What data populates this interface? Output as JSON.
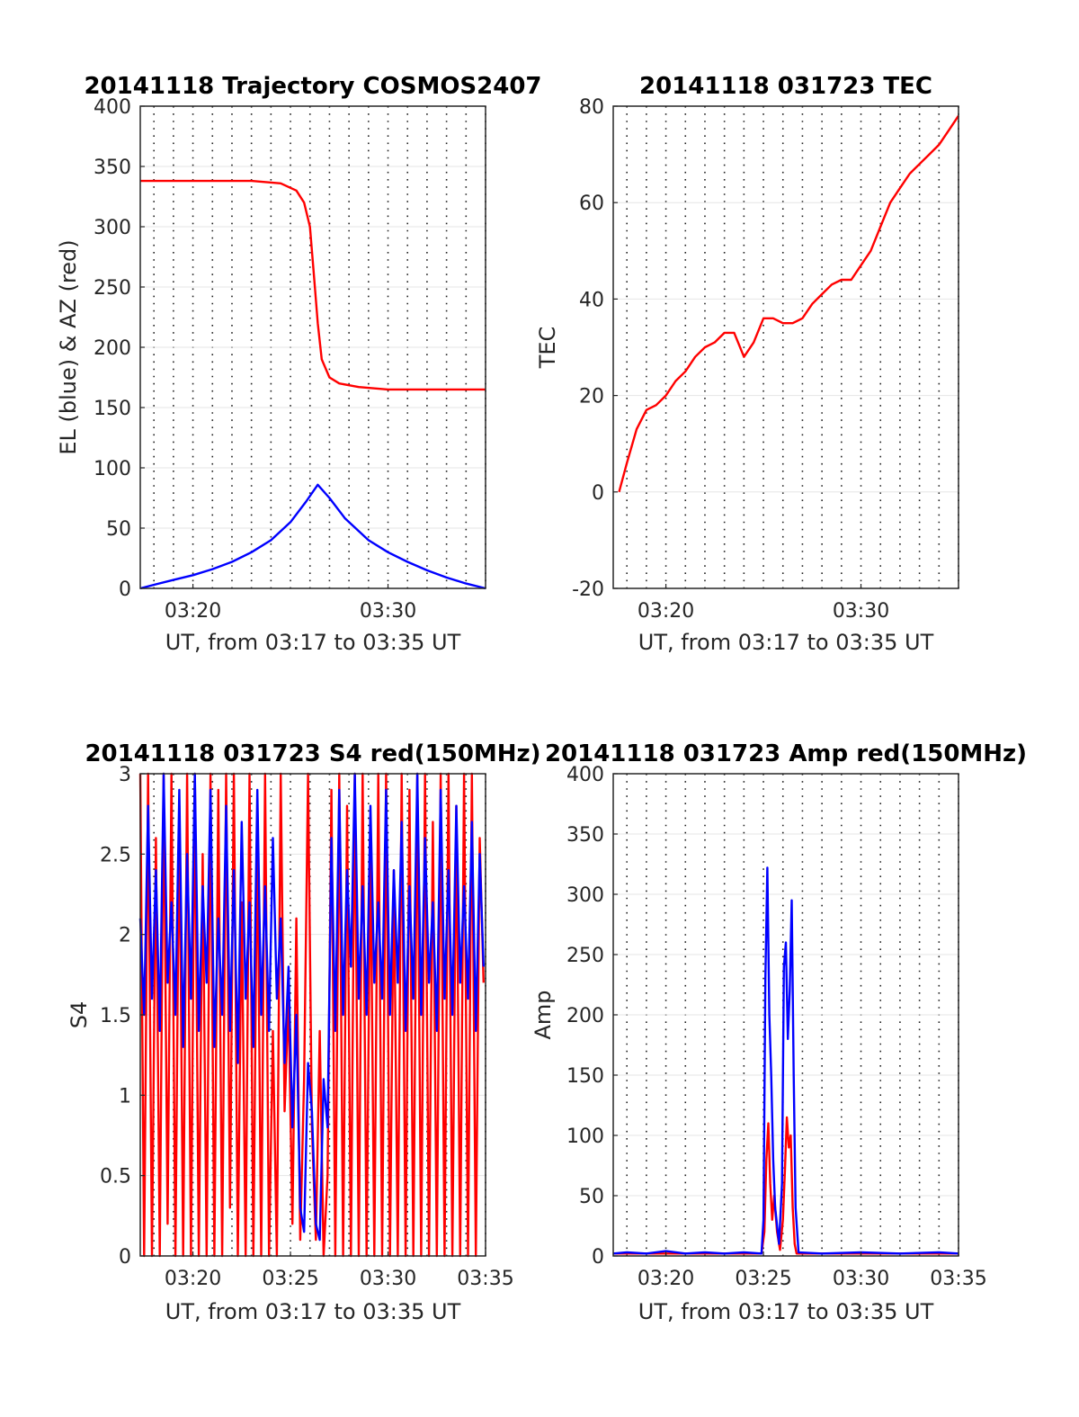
{
  "colors": {
    "el": "#0000ff",
    "az": "#ff0000",
    "s4_red": "#ff0000",
    "s4_blue": "#0000ff",
    "tec": "#ff0000",
    "amp_red": "#ff0000",
    "amp_blue": "#0000ff"
  },
  "chart_data": [
    {
      "type": "line",
      "title": "20141118 Trajectory COSMOS2407",
      "xlabel": "UT, from 03:17 to 03:35 UT",
      "ylabel": "EL (blue) & AZ (red)",
      "xlim_minutes": [
        17.3,
        35
      ],
      "ylim": [
        0,
        400
      ],
      "yticks": [
        "0",
        "50",
        "100",
        "150",
        "200",
        "250",
        "300",
        "350",
        "400"
      ],
      "xticks": [
        {
          "x": "03:20",
          "label": "03:20"
        },
        {
          "x": "03:30",
          "label": "03:30"
        }
      ],
      "grid": "dotted-vertical",
      "series": [
        {
          "key": "az",
          "color": "#ff0000",
          "x": [
            "03:17.3",
            "03:20",
            "03:23",
            "03:24.5",
            "03:25.3",
            "03:25.7",
            "03:26.0",
            "03:26.2",
            "03:26.4",
            "03:26.6",
            "03:27.0",
            "03:27.5",
            "03:28.5",
            "03:30",
            "03:32",
            "03:35"
          ],
          "y": [
            338,
            338,
            338,
            336,
            330,
            320,
            300,
            260,
            220,
            190,
            175,
            170,
            167,
            165,
            165,
            165
          ]
        },
        {
          "key": "el",
          "color": "#0000ff",
          "x": [
            "03:17.3",
            "03:18",
            "03:19",
            "03:20",
            "03:21",
            "03:22",
            "03:23",
            "03:24",
            "03:25",
            "03:25.8",
            "03:26.4",
            "03:27",
            "03:27.8",
            "03:29",
            "03:30",
            "03:31",
            "03:32",
            "03:33",
            "03:34",
            "03:35"
          ],
          "y": [
            0,
            3,
            7,
            11,
            16,
            22,
            30,
            40,
            55,
            72,
            86,
            75,
            58,
            40,
            30,
            22,
            15,
            9,
            4,
            0
          ]
        }
      ]
    },
    {
      "type": "line",
      "title": "20141118 031723 TEC",
      "xlabel": "UT, from 03:17 to 03:35 UT",
      "ylabel": "TEC",
      "xlim_minutes": [
        17.3,
        35
      ],
      "ylim": [
        -20,
        80
      ],
      "yticks": [
        "-20",
        "0",
        "20",
        "40",
        "60",
        "80"
      ],
      "xticks": [
        {
          "x": "03:20",
          "label": "03:20"
        },
        {
          "x": "03:30",
          "label": "03:30"
        }
      ],
      "grid": "dotted-vertical",
      "series": [
        {
          "key": "tec",
          "color": "#ff0000",
          "x": [
            "03:17.6",
            "03:18",
            "03:18.5",
            "03:19",
            "03:19.5",
            "03:20",
            "03:20.5",
            "03:21",
            "03:21.5",
            "03:22",
            "03:22.5",
            "03:23",
            "03:23.5",
            "03:24",
            "03:24.5",
            "03:25",
            "03:25.5",
            "03:26",
            "03:26.5",
            "03:27",
            "03:27.5",
            "03:28",
            "03:28.5",
            "03:29",
            "03:29.5",
            "03:30",
            "03:30.5",
            "03:31",
            "03:31.5",
            "03:32",
            "03:32.5",
            "03:33",
            "03:33.5",
            "03:34",
            "03:34.5",
            "03:35"
          ],
          "y": [
            0,
            6,
            13,
            17,
            18,
            20,
            23,
            25,
            28,
            30,
            31,
            33,
            33,
            28,
            31,
            36,
            36,
            35,
            35,
            36,
            39,
            41,
            43,
            44,
            44,
            47,
            50,
            55,
            60,
            63,
            66,
            68,
            70,
            72,
            75,
            78
          ]
        }
      ]
    },
    {
      "type": "line",
      "title": "20141118 031723 S4 red(150MHz)",
      "xlabel": "UT, from 03:17 to 03:35 UT",
      "ylabel": "S4",
      "xlim_minutes": [
        17.3,
        35
      ],
      "ylim": [
        0,
        3
      ],
      "yticks": [
        "0",
        "0.5",
        "1",
        "1.5",
        "2",
        "2.5",
        "3"
      ],
      "xticks": [
        {
          "x": "03:20",
          "label": "03:20"
        },
        {
          "x": "03:25",
          "label": "03:25"
        },
        {
          "x": "03:30",
          "label": "03:30"
        },
        {
          "x": "03:35",
          "label": "03:35"
        }
      ],
      "grid": "dotted-vertical",
      "series": [
        {
          "key": "s4_red",
          "color": "#ff0000",
          "x": [
            "03:17.3",
            "03:17.5",
            "03:17.7",
            "03:17.9",
            "03:18.1",
            "03:18.3",
            "03:18.5",
            "03:18.7",
            "03:18.9",
            "03:19.1",
            "03:19.3",
            "03:19.5",
            "03:19.7",
            "03:19.9",
            "03:20.1",
            "03:20.3",
            "03:20.5",
            "03:20.7",
            "03:20.9",
            "03:21.1",
            "03:21.3",
            "03:21.5",
            "03:21.7",
            "03:21.9",
            "03:22.1",
            "03:22.3",
            "03:22.5",
            "03:22.7",
            "03:22.9",
            "03:23.1",
            "03:23.3",
            "03:23.5",
            "03:23.7",
            "03:23.9",
            "03:24.1",
            "03:24.3",
            "03:24.5",
            "03:24.7",
            "03:24.9",
            "03:25.1",
            "03:25.3",
            "03:25.5",
            "03:25.7",
            "03:25.9",
            "03:26.1",
            "03:26.3",
            "03:26.5",
            "03:26.7",
            "03:26.9",
            "03:27.1",
            "03:27.3",
            "03:27.5",
            "03:27.7",
            "03:27.9",
            "03:28.1",
            "03:28.3",
            "03:28.5",
            "03:28.7",
            "03:28.9",
            "03:29.1",
            "03:29.3",
            "03:29.5",
            "03:29.7",
            "03:29.9",
            "03:30.1",
            "03:30.3",
            "03:30.5",
            "03:30.7",
            "03:30.9",
            "03:31.1",
            "03:31.3",
            "03:31.5",
            "03:31.7",
            "03:31.9",
            "03:32.1",
            "03:32.3",
            "03:32.5",
            "03:32.7",
            "03:32.9",
            "03:33.1",
            "03:33.3",
            "03:33.5",
            "03:33.7",
            "03:33.9",
            "03:34.1",
            "03:34.3",
            "03:34.5",
            "03:34.7",
            "03:34.9"
          ],
          "y": [
            3,
            0,
            3,
            0,
            2.6,
            0,
            3,
            0.2,
            3,
            0,
            2.8,
            0,
            3,
            0,
            3,
            0,
            2.5,
            0,
            3,
            0,
            2.9,
            0,
            3,
            0.3,
            3,
            0,
            2.2,
            0,
            3,
            0,
            2.7,
            0,
            3,
            0,
            1.4,
            0,
            3,
            0.9,
            1.6,
            0.2,
            2.1,
            0.1,
            1.1,
            3,
            0.8,
            0.1,
            1.4,
            0,
            0.5,
            2.9,
            0,
            3,
            0,
            2.8,
            0,
            3,
            0,
            3,
            0,
            2.6,
            0,
            3,
            0,
            3,
            0,
            2.4,
            0,
            3,
            0,
            2.9,
            0,
            3,
            0,
            3,
            0,
            2.7,
            0,
            3,
            0,
            3,
            0,
            2.8,
            0,
            3,
            0,
            3,
            0,
            2.6,
            1.7
          ]
        },
        {
          "key": "s4_blue",
          "color": "#0000ff",
          "x": [
            "03:17.3",
            "03:17.5",
            "03:17.7",
            "03:17.9",
            "03:18.1",
            "03:18.3",
            "03:18.5",
            "03:18.7",
            "03:18.9",
            "03:19.1",
            "03:19.3",
            "03:19.5",
            "03:19.7",
            "03:19.9",
            "03:20.1",
            "03:20.3",
            "03:20.5",
            "03:20.7",
            "03:20.9",
            "03:21.1",
            "03:21.3",
            "03:21.5",
            "03:21.7",
            "03:21.9",
            "03:22.1",
            "03:22.3",
            "03:22.5",
            "03:22.7",
            "03:22.9",
            "03:23.1",
            "03:23.3",
            "03:23.5",
            "03:23.7",
            "03:23.9",
            "03:24.1",
            "03:24.3",
            "03:24.5",
            "03:24.7",
            "03:24.9",
            "03:25.1",
            "03:25.3",
            "03:25.5",
            "03:25.7",
            "03:25.9",
            "03:26.1",
            "03:26.3",
            "03:26.5",
            "03:26.7",
            "03:26.9",
            "03:27.1",
            "03:27.3",
            "03:27.5",
            "03:27.7",
            "03:27.9",
            "03:28.1",
            "03:28.3",
            "03:28.5",
            "03:28.7",
            "03:28.9",
            "03:29.1",
            "03:29.3",
            "03:29.5",
            "03:29.7",
            "03:29.9",
            "03:30.1",
            "03:30.3",
            "03:30.5",
            "03:30.7",
            "03:30.9",
            "03:31.1",
            "03:31.3",
            "03:31.5",
            "03:31.7",
            "03:31.9",
            "03:32.1",
            "03:32.3",
            "03:32.5",
            "03:32.7",
            "03:32.9",
            "03:33.1",
            "03:33.3",
            "03:33.5",
            "03:33.7",
            "03:33.9",
            "03:34.1",
            "03:34.3",
            "03:34.5",
            "03:34.7",
            "03:34.9"
          ],
          "y": [
            2.1,
            1.5,
            2.8,
            1.6,
            2.4,
            1.4,
            3,
            1.7,
            2.2,
            1.5,
            2.9,
            1.3,
            2.5,
            1.6,
            3,
            1.4,
            2.3,
            1.7,
            2.9,
            1.3,
            2.1,
            1.5,
            2.8,
            1.4,
            2.4,
            1.2,
            2.7,
            1.6,
            2.2,
            1.3,
            2.9,
            1.5,
            2.3,
            1.4,
            2.6,
            1.6,
            2.1,
            1.2,
            1.8,
            0.8,
            1.5,
            0.3,
            0.15,
            1.2,
            0.9,
            0.2,
            0.1,
            1.1,
            0.8,
            2.6,
            1.4,
            2.9,
            1.5,
            2.4,
            1.8,
            3,
            1.6,
            2.3,
            1.5,
            2.8,
            1.7,
            2.2,
            1.6,
            2.9,
            1.5,
            2.4,
            1.7,
            2.7,
            1.4,
            2.3,
            1.6,
            3,
            1.5,
            2.6,
            1.7,
            2.2,
            1.4,
            2.9,
            1.6,
            2.4,
            1.5,
            2.8,
            1.7,
            2.3,
            1.6,
            2.7,
            1.4,
            2.5,
            1.8
          ]
        }
      ]
    },
    {
      "type": "line",
      "title": "20141118 031723 Amp red(150MHz)",
      "xlabel": "UT, from 03:17 to 03:35 UT",
      "ylabel": "Amp",
      "xlim_minutes": [
        17.3,
        35
      ],
      "ylim": [
        0,
        400
      ],
      "yticks": [
        "0",
        "50",
        "100",
        "150",
        "200",
        "250",
        "300",
        "350",
        "400"
      ],
      "xticks": [
        {
          "x": "03:20",
          "label": "03:20"
        },
        {
          "x": "03:25",
          "label": "03:25"
        },
        {
          "x": "03:30",
          "label": "03:30"
        },
        {
          "x": "03:35",
          "label": "03:35"
        }
      ],
      "grid": "dotted-vertical",
      "series": [
        {
          "key": "amp_red",
          "color": "#ff0000",
          "x": [
            "03:17.3",
            "03:24.9",
            "03:25.05",
            "03:25.15",
            "03:25.25",
            "03:25.35",
            "03:25.45",
            "03:25.55",
            "03:25.7",
            "03:25.85",
            "03:26.0",
            "03:26.1",
            "03:26.2",
            "03:26.3",
            "03:26.4",
            "03:26.5",
            "03:26.6",
            "03:26.7",
            "03:35"
          ],
          "y": [
            2,
            2,
            20,
            80,
            110,
            60,
            30,
            50,
            20,
            5,
            30,
            70,
            115,
            90,
            100,
            40,
            10,
            2,
            2
          ]
        },
        {
          "key": "amp_blue",
          "color": "#0000ff",
          "x": [
            "03:17.3",
            "03:18",
            "03:19",
            "03:20",
            "03:21",
            "03:22",
            "03:23",
            "03:24",
            "03:24.9",
            "03:25.0",
            "03:25.1",
            "03:25.2",
            "03:25.3",
            "03:25.4",
            "03:25.5",
            "03:25.6",
            "03:25.8",
            "03:25.95",
            "03:26.05",
            "03:26.15",
            "03:26.25",
            "03:26.35",
            "03:26.45",
            "03:26.55",
            "03:26.65",
            "03:26.8",
            "03:28",
            "03:30",
            "03:32",
            "03:34",
            "03:35"
          ],
          "y": [
            2,
            3,
            2,
            4,
            2,
            3,
            2,
            3,
            2,
            30,
            230,
            322,
            200,
            150,
            80,
            40,
            10,
            60,
            240,
            260,
            180,
            220,
            295,
            150,
            40,
            3,
            2,
            3,
            2,
            3,
            2
          ]
        }
      ]
    }
  ]
}
